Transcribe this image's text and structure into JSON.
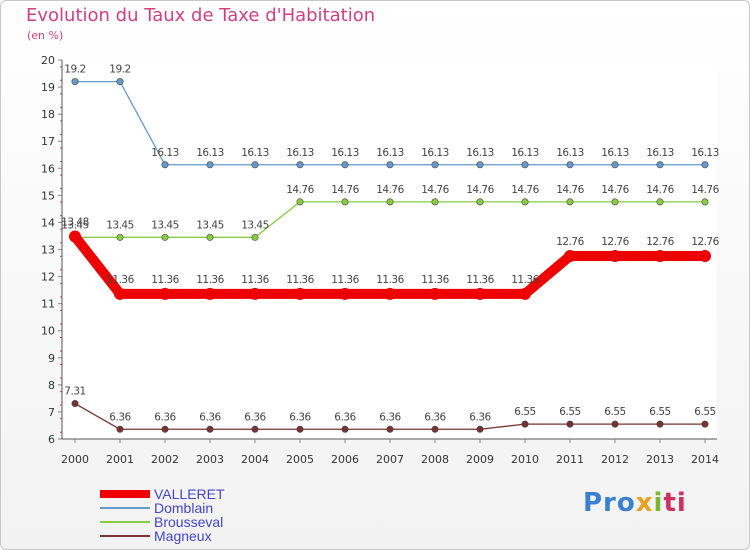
{
  "title": "Evolution du Taux de Taxe d'Habitation",
  "subtitle": "(en %)",
  "logo": {
    "p1": "Pro",
    "p2": "x",
    "p3": "i",
    "p4": "ti"
  },
  "chart_data": {
    "type": "line",
    "title": "Evolution du Taux de Taxe d'Habitation",
    "ylabel": "(en %)",
    "xlabel": "",
    "ylim": [
      6,
      20
    ],
    "yticks": [
      "6",
      "7",
      "8",
      "9",
      "10",
      "11",
      "12",
      "13",
      "14",
      "15",
      "16",
      "17",
      "18",
      "19",
      "20"
    ],
    "x": [
      "2000",
      "2001",
      "2002",
      "2003",
      "2004",
      "2005",
      "2006",
      "2007",
      "2008",
      "2009",
      "2010",
      "2011",
      "2012",
      "2013",
      "2014"
    ],
    "legend_position": "bottom-left",
    "series": [
      {
        "name": "VALLERET",
        "color": "#ee0000",
        "line_width": "thick",
        "values": [
          13.48,
          11.36,
          11.36,
          11.36,
          11.36,
          11.36,
          11.36,
          11.36,
          11.36,
          11.36,
          11.36,
          12.76,
          12.76,
          12.76,
          12.76
        ],
        "labels": [
          "13.48",
          "11.36",
          "11.36",
          "11.36",
          "11.36",
          "11.36",
          "11.36",
          "11.36",
          "11.36",
          "11.36",
          "11.36",
          "12.76",
          "12.76",
          "12.76",
          "12.76"
        ]
      },
      {
        "name": "Domblain",
        "color": "#6699cc",
        "values": [
          19.2,
          19.2,
          16.13,
          16.13,
          16.13,
          16.13,
          16.13,
          16.13,
          16.13,
          16.13,
          16.13,
          16.13,
          16.13,
          16.13,
          16.13
        ],
        "labels": [
          "19.2",
          "19.2",
          "16.13",
          "16.13",
          "16.13",
          "16.13",
          "16.13",
          "16.13",
          "16.13",
          "16.13",
          "16.13",
          "16.13",
          "16.13",
          "16.13",
          "16.13"
        ]
      },
      {
        "name": "Brousseval",
        "color": "#88cc44",
        "values": [
          13.45,
          13.45,
          13.45,
          13.45,
          13.45,
          14.76,
          14.76,
          14.76,
          14.76,
          14.76,
          14.76,
          14.76,
          14.76,
          14.76,
          14.76
        ],
        "labels": [
          "13.45",
          "13.45",
          "13.45",
          "13.45",
          "13.45",
          "14.76",
          "14.76",
          "14.76",
          "14.76",
          "14.76",
          "14.76",
          "14.76",
          "14.76",
          "14.76",
          "14.76"
        ]
      },
      {
        "name": "Magneux",
        "color": "#773333",
        "values": [
          7.31,
          6.36,
          6.36,
          6.36,
          6.36,
          6.36,
          6.36,
          6.36,
          6.36,
          6.36,
          6.55,
          6.55,
          6.55,
          6.55,
          6.55
        ],
        "labels": [
          "7.31",
          "6.36",
          "6.36",
          "6.36",
          "6.36",
          "6.36",
          "6.36",
          "6.36",
          "6.36",
          "6.36",
          "6.55",
          "6.55",
          "6.55",
          "6.55",
          "6.55"
        ]
      }
    ]
  }
}
